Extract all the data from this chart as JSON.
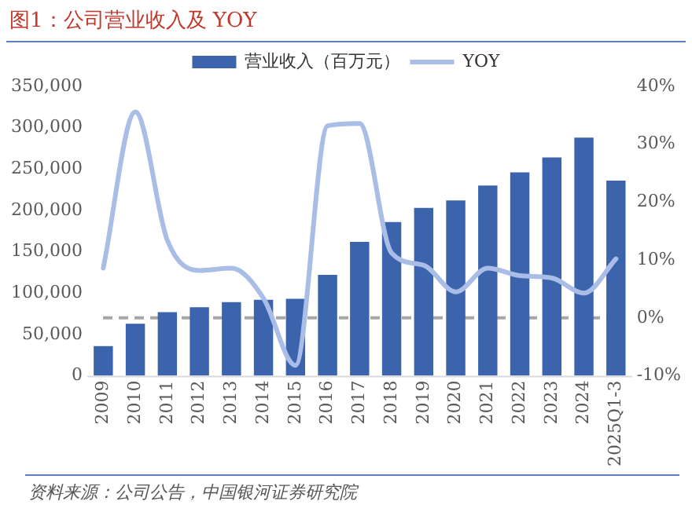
{
  "chart_data": {
    "type": "bar",
    "title": "图1：公司营业收入及 YOY",
    "annotations": [
      "资料来源：公司公告，中国银河证券研究院"
    ],
    "categories": [
      "2009",
      "2010",
      "2011",
      "2012",
      "2013",
      "2014",
      "2015",
      "2016",
      "2017",
      "2018",
      "2019",
      "2020",
      "2021",
      "2022",
      "2023",
      "2024",
      "2025Q1-3"
    ],
    "series": [
      {
        "name": "营业收入（百万元）",
        "color": "#3b64ad",
        "values": [
          36000,
          63000,
          77000,
          83000,
          89000,
          92000,
          93000,
          122000,
          162000,
          186000,
          203000,
          212000,
          230000,
          246000,
          264000,
          288000,
          236000
        ]
      },
      {
        "name": "YOY",
        "type": "line",
        "axis": "y2",
        "color": "#a9bde6",
        "marker": "none",
        "values": [
          8.6,
          35.6,
          13.4,
          8.2,
          8.6,
          3.4,
          -8.2,
          33.2,
          33.6,
          11.2,
          9.1,
          4.5,
          8.6,
          7.3,
          6.9,
          4.3,
          10.2
        ]
      }
    ],
    "ylim": [
      0,
      350000
    ],
    "yticks": [
      {
        "value": 0,
        "label": "0"
      },
      {
        "value": 50000,
        "label": "50,000"
      },
      {
        "value": 100000,
        "label": "100,000"
      },
      {
        "value": 150000,
        "label": "150,000"
      },
      {
        "value": 200000,
        "label": "200,000"
      },
      {
        "value": 250000,
        "label": "250,000"
      },
      {
        "value": 300000,
        "label": "300,000"
      },
      {
        "value": 350000,
        "label": "350,000"
      }
    ],
    "y2lim": [
      -10,
      40
    ],
    "y2ticks": [
      {
        "value": -10,
        "label": "-10%"
      },
      {
        "value": 0,
        "label": "0%"
      },
      {
        "value": 10,
        "label": "10%"
      },
      {
        "value": 20,
        "label": "20%"
      },
      {
        "value": 30,
        "label": "30%"
      },
      {
        "value": 40,
        "label": "40%"
      }
    ],
    "ref_lines": [
      {
        "axis": "y2",
        "value": 0,
        "color": "#a6a6a6",
        "line_style": "dashed"
      }
    ],
    "grid": false,
    "legend": "top"
  }
}
